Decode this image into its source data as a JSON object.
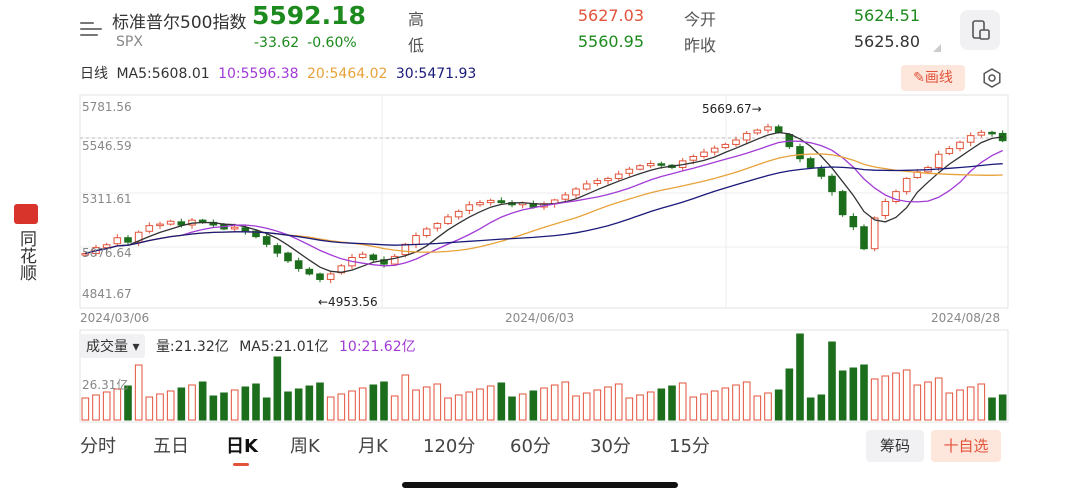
{
  "header": {
    "name": "标准普尔500指数",
    "code": "SPX",
    "price": "5592.18",
    "change": "-33.62",
    "change_pct": "-0.60%",
    "high_label": "高",
    "high": "5627.03",
    "low_label": "低",
    "low": "5560.95",
    "open_label": "今开",
    "open": "5624.51",
    "prev_close_label": "昨收",
    "prev_close": "5625.80"
  },
  "ma": {
    "period": "日线",
    "ma5": "MA5:5608.01",
    "ma10": "10:5596.38",
    "ma20": "20:5464.02",
    "ma30": "30:5471.93"
  },
  "draw_button": "画线",
  "side_app": "同花顺",
  "chart": {
    "y_labels": [
      "5781.56",
      "5546.59",
      "5311.61",
      "5076.64",
      "4841.67"
    ],
    "x_labels": [
      "2024/03/06",
      "2024/06/03",
      "2024/08/28"
    ],
    "max_annotation": "5669.67→",
    "min_annotation": "←4953.56",
    "vol_axis_label": "26.31亿"
  },
  "volume": {
    "selector": "成交量",
    "vol": "量:21.32亿",
    "ma5": "MA5:21.01亿",
    "ma10": "10:21.62亿"
  },
  "tabs": [
    "分时",
    "五日",
    "日K",
    "周K",
    "月K",
    "120分",
    "60分",
    "30分",
    "15分"
  ],
  "active_tab": "日K",
  "buttons": {
    "chips": "筹码",
    "favorite": "十自选"
  },
  "colors": {
    "up": "#e2533a",
    "down": "#1c6e1c",
    "ma5": "#333333",
    "ma10": "#a23bd6",
    "ma20": "#e8a23a",
    "ma30": "#1a1a7a"
  },
  "chart_data": {
    "type": "candlestick",
    "y_axis_ticks": [
      5781.56,
      5546.59,
      5311.61,
      5076.64,
      4841.67
    ],
    "x_axis_ticks": [
      "2024/03/06",
      "2024/06/03",
      "2024/08/28"
    ],
    "annotations": [
      {
        "label": "5669.67→",
        "value": 5669.67
      },
      {
        "label": "←4953.56",
        "value": 4953.56
      }
    ],
    "closes": [
      5078,
      5105,
      5118,
      5150,
      5130,
      5175,
      5205,
      5212,
      5225,
      5208,
      5230,
      5222,
      5208,
      5190,
      5198,
      5180,
      5155,
      5120,
      5080,
      5045,
      5010,
      4985,
      4960,
      4985,
      5022,
      5060,
      5075,
      5050,
      5030,
      5065,
      5120,
      5160,
      5190,
      5215,
      5245,
      5270,
      5300,
      5310,
      5320,
      5310,
      5300,
      5308,
      5290,
      5305,
      5322,
      5345,
      5372,
      5395,
      5410,
      5420,
      5440,
      5462,
      5478,
      5488,
      5480,
      5470,
      5500,
      5520,
      5540,
      5558,
      5575,
      5595,
      5625,
      5640,
      5655,
      5630,
      5565,
      5510,
      5470,
      5430,
      5360,
      5255,
      5200,
      5100,
      5240,
      5315,
      5360,
      5420,
      5450,
      5470,
      5530,
      5556,
      5585,
      5615,
      5630,
      5625,
      5592
    ]
  }
}
